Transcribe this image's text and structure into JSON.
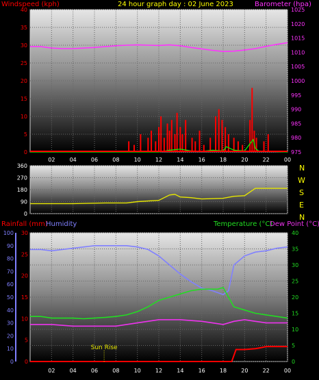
{
  "colors": {
    "wind": "#ff0000",
    "gust": "#00ff00",
    "baro": "#ff33ff",
    "dir": "#e6e600",
    "rain": "#ff0000",
    "humidity": "#8080ff",
    "temp": "#22dd22",
    "dew": "#ee33ee",
    "tickText": "#ffffff",
    "sunrise": "#e6e600"
  },
  "labels": {
    "windspeed": "Windspeed (kph)",
    "title": "24 hour graph day : 02 June 2023",
    "barometer": "Barometer (hpa)",
    "rainfall": "Rainfall (mm)",
    "humidity": "Humidity",
    "temperature": "Temperature (°C)",
    "dewpoint": "Dew Point (°C)",
    "sunrise": "Sun Rise"
  },
  "compass": [
    "N",
    "W",
    "S",
    "E",
    "N"
  ],
  "chart_data": [
    {
      "type": "line",
      "name": "wind-baro",
      "x_ticks": [
        "02",
        "04",
        "06",
        "08",
        "10",
        "12",
        "14",
        "16",
        "18",
        "20",
        "22",
        "00"
      ],
      "y_left": {
        "label": "Windspeed (kph)",
        "min": 0,
        "max": 40,
        "ticks": [
          0,
          5,
          10,
          15,
          20,
          25,
          30,
          35,
          40
        ]
      },
      "y_right": {
        "label": "Barometer (hpa)",
        "min": 975,
        "max": 1025,
        "ticks": [
          975,
          980,
          985,
          990,
          995,
          1000,
          1005,
          1010,
          1015,
          1020,
          1025
        ]
      },
      "series": [
        {
          "name": "Barometer (hpa)",
          "axis": "right",
          "x": [
            0,
            1,
            2,
            3,
            4,
            5,
            6,
            7,
            8,
            9,
            10,
            11,
            12,
            13,
            14,
            15,
            16,
            17,
            18,
            19,
            20,
            21,
            22,
            23,
            24
          ],
          "y": [
            1012,
            1012,
            1011.5,
            1011.3,
            1011.3,
            1011.5,
            1011.7,
            1012,
            1012.3,
            1012.5,
            1012.6,
            1012.5,
            1012.4,
            1012.6,
            1012.3,
            1011.7,
            1011.2,
            1010.7,
            1010.3,
            1010.4,
            1010.8,
            1011.3,
            1012.1,
            1012.8,
            1013.4
          ]
        },
        {
          "name": "Windspeed (kph)",
          "axis": "left",
          "style": "bars",
          "x": [
            9.2,
            9.7,
            10.3,
            11.0,
            11.3,
            11.7,
            12.0,
            12.2,
            12.5,
            12.8,
            13.0,
            13.2,
            13.5,
            13.7,
            14.0,
            14.2,
            14.5,
            15.1,
            15.4,
            15.8,
            16.2,
            16.8,
            17.3,
            17.6,
            17.9,
            18.2,
            18.5,
            19.0,
            19.4,
            19.8,
            20.5,
            20.7,
            20.9,
            21.1,
            21.8,
            22.2
          ],
          "y": [
            3,
            2,
            5,
            4,
            6,
            3,
            7,
            10,
            4,
            8,
            6,
            9,
            5,
            11,
            7,
            5,
            9,
            4,
            3,
            6,
            2,
            4,
            10,
            12,
            9,
            7,
            5,
            4,
            3,
            2,
            9,
            18,
            6,
            4,
            3,
            5
          ]
        },
        {
          "name": "Gust",
          "axis": "left",
          "style": "line",
          "x": [
            0,
            12.0,
            13.0,
            14.0,
            15.0,
            16.0,
            17.0,
            18.0,
            18.3,
            19.0,
            20.0,
            20.8,
            21.0,
            21.3,
            22.0,
            24
          ],
          "y": [
            0,
            0,
            0.5,
            0.8,
            0.3,
            0.2,
            0.5,
            0.3,
            1.5,
            0.5,
            0.3,
            3.5,
            1.0,
            0.3,
            0.2,
            0
          ]
        }
      ]
    },
    {
      "type": "line",
      "name": "wind-direction",
      "y": {
        "min": 0,
        "max": 360,
        "ticks": [
          0,
          90,
          180,
          270,
          360
        ]
      },
      "series": [
        {
          "name": "Wind direction",
          "x": [
            0,
            4,
            7,
            9,
            10,
            12,
            13,
            13.5,
            14,
            15,
            16,
            18,
            19,
            20,
            21,
            22,
            24
          ],
          "y": [
            75,
            75,
            80,
            80,
            90,
            100,
            140,
            145,
            125,
            120,
            110,
            115,
            130,
            135,
            190,
            190,
            190
          ]
        }
      ]
    },
    {
      "type": "line",
      "name": "temp-humidity",
      "x_ticks": [
        "02",
        "04",
        "06",
        "08",
        "10",
        "12",
        "14",
        "16",
        "18",
        "20",
        "22",
        "00"
      ],
      "sunrise_hour": 6.9,
      "y_left_humidity": {
        "label": "Humidity",
        "min": 0,
        "max": 100,
        "ticks": [
          0,
          10,
          20,
          30,
          40,
          50,
          60,
          70,
          80,
          90,
          100
        ]
      },
      "y_left_rain": {
        "label": "Rainfall (mm)",
        "min": 0,
        "max": 30,
        "ticks": [
          0,
          5,
          10,
          15,
          20,
          25,
          30
        ]
      },
      "y_right": {
        "label": "Temperature (°C)",
        "min": 0,
        "max": 40,
        "ticks": [
          0,
          5,
          10,
          15,
          20,
          25,
          30,
          35,
          40
        ]
      },
      "series": [
        {
          "name": "Humidity",
          "axis": "humidity",
          "x": [
            0,
            1,
            2,
            3,
            4,
            5,
            6,
            7,
            8,
            9,
            10,
            11,
            12,
            13,
            14,
            15,
            16,
            17,
            18,
            18.5,
            19,
            20,
            21,
            22,
            23,
            24
          ],
          "y": [
            87,
            87,
            86,
            87,
            88,
            89,
            90,
            90,
            90,
            90,
            89,
            87,
            82,
            75,
            68,
            62,
            57,
            55,
            52,
            55,
            75,
            82,
            85,
            86,
            88,
            89
          ]
        },
        {
          "name": "Temperature (°C)",
          "axis": "right",
          "x": [
            0,
            1,
            2,
            3,
            4,
            5,
            6,
            7,
            8,
            9,
            10,
            11,
            12,
            13,
            14,
            15,
            16,
            17,
            17.5,
            18,
            18.5,
            19,
            20,
            21,
            22,
            23,
            24
          ],
          "y": [
            14,
            14,
            13.5,
            13.5,
            13.5,
            13.3,
            13.5,
            13.7,
            14,
            14.5,
            15.5,
            17,
            19,
            20,
            21,
            22,
            22.5,
            22.5,
            22.5,
            23,
            20,
            17,
            16,
            15,
            14.5,
            14,
            13.5
          ]
        },
        {
          "name": "Dew Point (°C)",
          "axis": "right",
          "x": [
            0,
            2,
            4,
            6,
            8,
            10,
            12,
            14,
            16,
            17,
            18,
            19,
            20,
            21,
            22,
            23,
            24
          ],
          "y": [
            11.5,
            11.5,
            11,
            11,
            11,
            12,
            13,
            13,
            12.5,
            12,
            11.5,
            12.5,
            13,
            12.5,
            12,
            12,
            12
          ]
        },
        {
          "name": "Rainfall (mm)",
          "axis": "rain",
          "x": [
            0,
            17,
            18.8,
            19.2,
            20,
            21,
            21.5,
            22,
            23,
            24
          ],
          "y": [
            0,
            0,
            0,
            2.8,
            2.8,
            3.0,
            3.2,
            3.5,
            3.5,
            3.5
          ]
        }
      ]
    }
  ]
}
